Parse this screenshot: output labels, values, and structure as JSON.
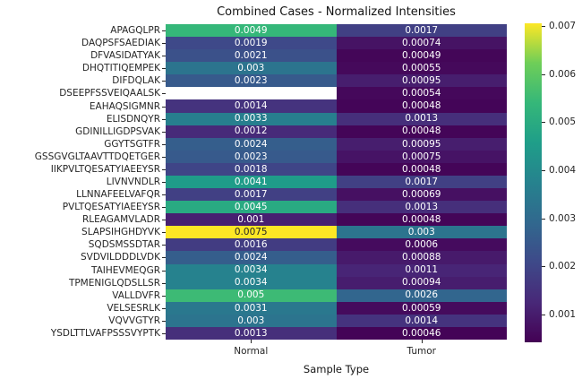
{
  "chart_data": {
    "type": "heatmap",
    "title": "Combined Cases - Normalized Intensities",
    "xlabel": "Sample Type",
    "ylabel": "",
    "columns": [
      "Normal",
      "Tumor"
    ],
    "rows": [
      "APAGQLPR",
      "DAQPSFSAEDIAK",
      "DFVASIDATYAK",
      "DHQTITIQEMPEK",
      "DIFDQLAK",
      "DSEEPFSSVEIQAALSK",
      "EAHAQSIGMNR",
      "ELISDNQYR",
      "GDINILLIGDPSVAK",
      "GGYTSGTFR",
      "GSSGVGLTAAVTTDQETGER",
      "IIKPVLTQESATYIAEEYSR",
      "LIVNVNDLR",
      "LLNNAFEELVAFQR",
      "PVLTQESATYIAEEYSR",
      "RLEAGAMVLADR",
      "SLAPSIHGHDYVK",
      "SQDSMSSDTAR",
      "SVDVILDDDLVDK",
      "TAIHEVMEQGR",
      "TPMENIGLQDSLLSR",
      "VALLDVFR",
      "VELSESRLK",
      "VQVVGTYR",
      "YSDLTTLVAFPSSSVYPTK"
    ],
    "values": [
      [
        0.0049,
        0.0017
      ],
      [
        0.0019,
        0.00074
      ],
      [
        0.0021,
        0.00049
      ],
      [
        0.003,
        0.00055
      ],
      [
        0.0023,
        0.00095
      ],
      [
        null,
        0.00054
      ],
      [
        0.0014,
        0.00048
      ],
      [
        0.0033,
        0.0013
      ],
      [
        0.0012,
        0.00048
      ],
      [
        0.0024,
        0.00095
      ],
      [
        0.0023,
        0.00075
      ],
      [
        0.0018,
        0.00048
      ],
      [
        0.0041,
        0.0017
      ],
      [
        0.0017,
        0.00069
      ],
      [
        0.0045,
        0.0013
      ],
      [
        0.001,
        0.00048
      ],
      [
        0.0075,
        0.003
      ],
      [
        0.0016,
        0.0006
      ],
      [
        0.0024,
        0.00088
      ],
      [
        0.0034,
        0.0011
      ],
      [
        0.0034,
        0.00094
      ],
      [
        0.005,
        0.0026
      ],
      [
        0.0031,
        0.00059
      ],
      [
        0.003,
        0.0014
      ],
      [
        0.0013,
        0.00046
      ]
    ],
    "nan_color": "#ffffff",
    "colormap": "viridis",
    "annotation_text_dark": "#262626",
    "annotation_text_light": "#ffffff",
    "cell_scale": {
      "vmin": 0.0004,
      "vmax": 0.0064
    },
    "colorbar": {
      "vmin": 0.00042,
      "vmax": 0.00706,
      "tick_labels": [
        "0.007",
        "0.006",
        "0.005",
        "0.004",
        "0.003",
        "0.002",
        "0.001"
      ]
    },
    "legend_position": "right-colorbar",
    "grid": false
  }
}
